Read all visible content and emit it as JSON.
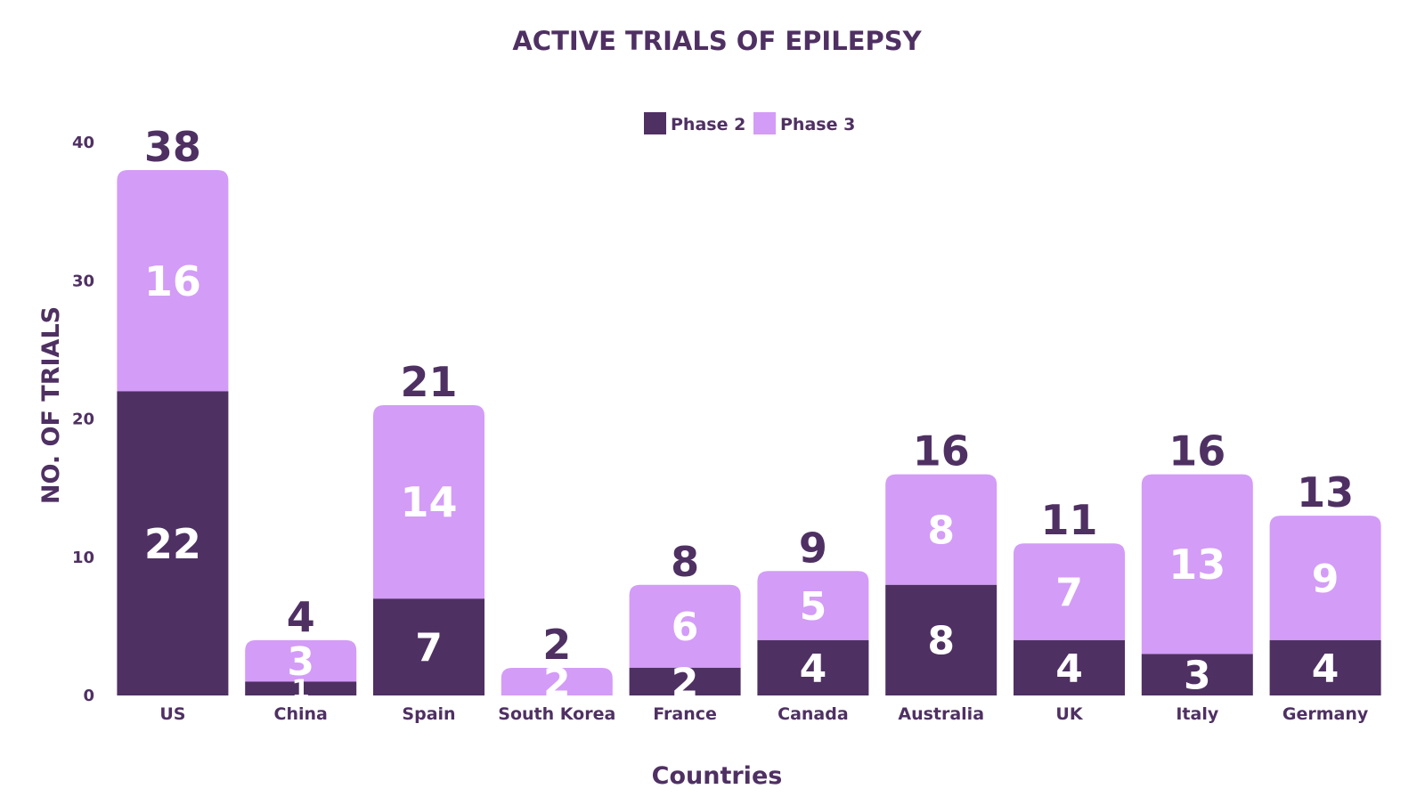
{
  "chart_data": {
    "type": "bar",
    "stacked": true,
    "title": "ACTIVE TRIALS OF EPILEPSY",
    "xlabel": "Countries",
    "ylabel": "NO. OF TRIALS",
    "ylim": [
      0,
      40
    ],
    "yticks": [
      0,
      10,
      20,
      30,
      40
    ],
    "grid": false,
    "legend_position": "top-center",
    "categories": [
      "US",
      "China",
      "Spain",
      "South Korea",
      "France",
      "Canada",
      "Australia",
      "UK",
      "Italy",
      "Germany"
    ],
    "series": [
      {
        "name": "Phase 2",
        "color": "#4f3063",
        "values": [
          22,
          1,
          7,
          0,
          2,
          4,
          8,
          4,
          3,
          4
        ]
      },
      {
        "name": "Phase 3",
        "color": "#d39cf7",
        "values": [
          16,
          3,
          14,
          2,
          6,
          5,
          8,
          7,
          13,
          9
        ]
      }
    ],
    "totals": [
      38,
      4,
      21,
      2,
      8,
      9,
      16,
      11,
      16,
      13
    ],
    "text_color": "#4f3063"
  }
}
